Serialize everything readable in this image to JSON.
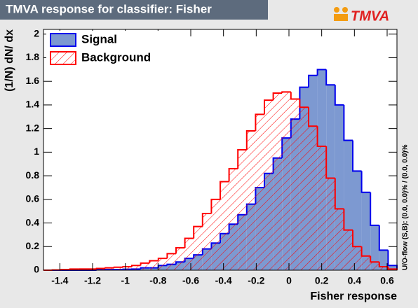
{
  "chart_data": {
    "type": "histogram",
    "title": "TMVA response for classifier: Fisher",
    "logo": "TMVA",
    "x_label": "Fisher response",
    "y_label": "(1/N) dN/ dx",
    "overflow_note": "U/O-flow (S,B): (0.0, 0.0)% / (0.0, 0.0)%",
    "bins": [
      -1.5,
      -1.446,
      -1.392,
      -1.338,
      -1.284,
      -1.23,
      -1.176,
      -1.122,
      -1.068,
      -1.014,
      -0.96,
      -0.906,
      -0.852,
      -0.798,
      -0.744,
      -0.69,
      -0.636,
      -0.582,
      -0.528,
      -0.474,
      -0.42,
      -0.366,
      -0.312,
      -0.258,
      -0.204,
      -0.15,
      -0.096,
      -0.042,
      0.012,
      0.066,
      0.12,
      0.174,
      0.228,
      0.282,
      0.336,
      0.39,
      0.444,
      0.498,
      0.552,
      0.606,
      0.66
    ],
    "series": [
      {
        "name": "Signal",
        "color": "#0000ee",
        "fill": "#7d99d1",
        "hatch": false,
        "values": [
          0,
          0,
          0,
          0,
          0,
          0,
          0.003,
          0.005,
          0.006,
          0.008,
          0.01,
          0.02,
          0.02,
          0.04,
          0.05,
          0.07,
          0.1,
          0.13,
          0.18,
          0.23,
          0.31,
          0.39,
          0.47,
          0.56,
          0.7,
          0.82,
          0.95,
          1.12,
          1.28,
          1.55,
          1.65,
          1.7,
          1.57,
          1.4,
          1.1,
          0.84,
          0.66,
          0.38,
          0.17,
          0.04
        ]
      },
      {
        "name": "Background",
        "color": "#ff0000",
        "fill": "none",
        "hatch": true,
        "values": [
          0,
          0.002,
          0.005,
          0.01,
          0.01,
          0.01,
          0.015,
          0.02,
          0.025,
          0.03,
          0.04,
          0.06,
          0.08,
          0.1,
          0.14,
          0.19,
          0.27,
          0.37,
          0.48,
          0.6,
          0.75,
          0.86,
          1.02,
          1.18,
          1.32,
          1.44,
          1.5,
          1.51,
          1.45,
          1.38,
          1.22,
          1.05,
          0.78,
          0.52,
          0.34,
          0.2,
          0.12,
          0.07,
          0.03,
          0.01
        ]
      }
    ],
    "xlim": [
      -1.5,
      0.66
    ],
    "ylim": [
      0,
      2.04
    ],
    "xticks": [
      -1.4,
      -1.2,
      -1,
      -0.8,
      -0.6,
      -0.4,
      -0.2,
      0,
      0.2,
      0.4,
      0.6
    ],
    "yticks": [
      0,
      0.2,
      0.4,
      0.6,
      0.8,
      1,
      1.2,
      1.4,
      1.6,
      1.8,
      2
    ],
    "legend": "top-left"
  }
}
